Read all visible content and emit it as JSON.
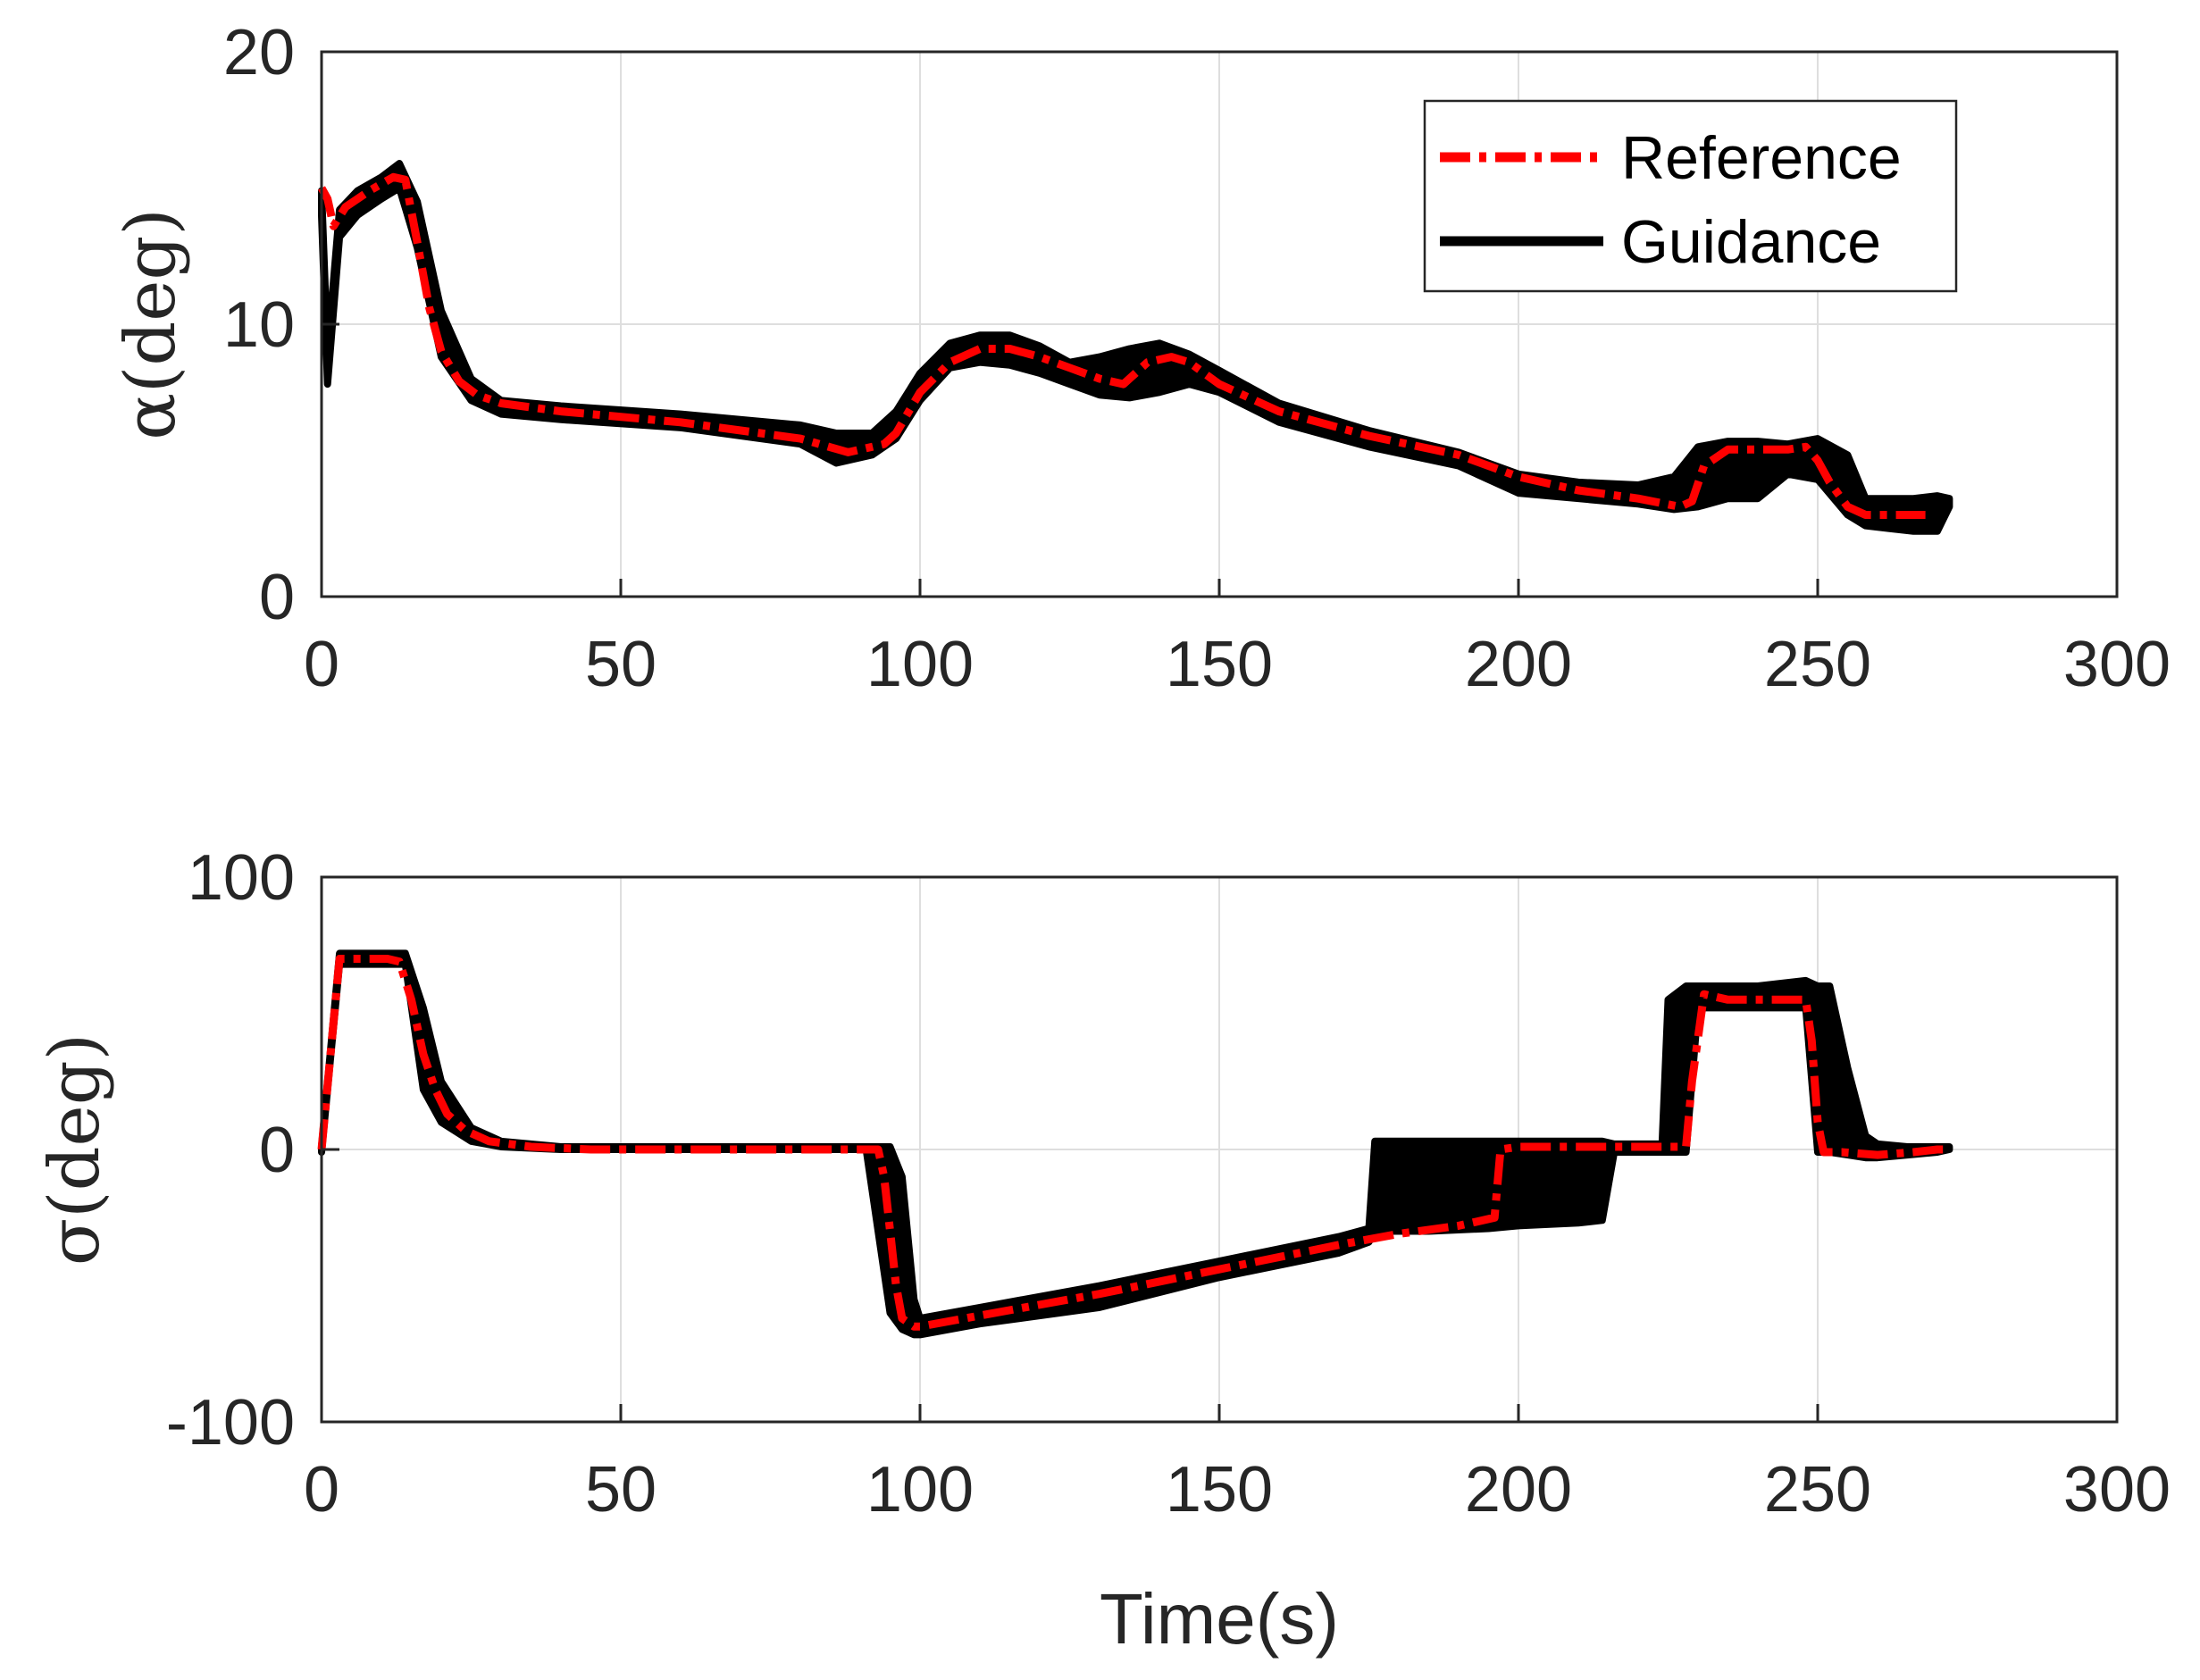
{
  "chart_data": [
    {
      "type": "line",
      "id": "alpha",
      "title": "",
      "xlabel": "",
      "ylabel": "α(deg)",
      "xlim": [
        0,
        300
      ],
      "ylim": [
        0,
        20
      ],
      "xticks": [
        0,
        50,
        100,
        150,
        200,
        250,
        300
      ],
      "yticks": [
        0,
        10,
        20
      ],
      "xtick_labels": [
        "0",
        "50",
        "100",
        "150",
        "200",
        "250",
        "300"
      ],
      "ytick_labels": [
        "0",
        "10",
        "20"
      ],
      "grid": true,
      "legend": {
        "position": "top-right",
        "entries": [
          {
            "label": "Reference",
            "style": "dash-dot",
            "color": "#ff0000"
          },
          {
            "label": "Guidance",
            "style": "solid",
            "color": "#000000"
          }
        ]
      },
      "series": [
        {
          "name": "Guidance",
          "color": "#000000",
          "band": {
            "x": [
              0,
              1,
              3,
              6,
              10,
              13,
              16,
              20,
              25,
              30,
              40,
              60,
              80,
              86,
              92,
              96,
              100,
              105,
              110,
              115,
              120,
              125,
              130,
              135,
              140,
              145,
              150,
              160,
              175,
              190,
              200,
              210,
              220,
              226,
              230,
              235,
              240,
              245,
              250,
              255,
              258,
              262,
              266,
              270,
              272
            ],
            "upper": [
              14.9,
              9.0,
              14.2,
              14.9,
              15.4,
              15.9,
              14.5,
              10.5,
              8.0,
              7.2,
              7.0,
              6.7,
              6.3,
              6.0,
              6.0,
              6.8,
              8.2,
              9.3,
              9.6,
              9.6,
              9.2,
              8.6,
              8.8,
              9.1,
              9.3,
              8.9,
              8.3,
              7.1,
              6.1,
              5.3,
              4.5,
              4.2,
              4.1,
              4.4,
              5.5,
              5.7,
              5.7,
              5.6,
              5.8,
              5.2,
              3.6,
              3.6,
              3.6,
              3.7,
              3.6
            ],
            "lower": [
              14.0,
              7.8,
              13.2,
              14.0,
              14.6,
              15.0,
              12.8,
              8.8,
              7.2,
              6.7,
              6.5,
              6.2,
              5.6,
              4.9,
              5.2,
              5.8,
              7.2,
              8.4,
              8.6,
              8.5,
              8.2,
              7.8,
              7.4,
              7.3,
              7.5,
              7.8,
              7.5,
              6.4,
              5.5,
              4.8,
              3.8,
              3.6,
              3.4,
              3.2,
              3.3,
              3.6,
              3.6,
              4.5,
              4.3,
              3.0,
              2.6,
              2.5,
              2.4,
              2.4,
              3.3
            ]
          }
        },
        {
          "name": "Reference",
          "color": "#ff0000",
          "x": [
            0,
            1,
            2,
            4,
            8,
            12,
            14,
            16,
            18,
            20,
            23,
            26,
            30,
            40,
            60,
            80,
            88,
            94,
            96,
            100,
            105,
            110,
            115,
            120,
            125,
            130,
            134,
            138,
            142,
            145,
            150,
            160,
            175,
            190,
            200,
            210,
            220,
            227,
            229,
            231,
            235,
            240,
            245,
            248,
            250,
            252,
            255,
            258,
            262,
            266,
            268
          ],
          "y": [
            15.0,
            14.6,
            13.6,
            14.3,
            14.9,
            15.4,
            15.3,
            13.0,
            10.6,
            9.0,
            7.9,
            7.4,
            7.1,
            6.8,
            6.4,
            5.8,
            5.3,
            5.6,
            6.0,
            7.5,
            8.6,
            9.1,
            9.1,
            8.8,
            8.4,
            8.0,
            7.8,
            8.6,
            8.8,
            8.6,
            7.8,
            6.8,
            5.9,
            5.2,
            4.4,
            3.9,
            3.6,
            3.3,
            3.5,
            4.8,
            5.4,
            5.4,
            5.4,
            5.5,
            5.0,
            4.2,
            3.3,
            3.0,
            3.0,
            3.0,
            3.0
          ]
        }
      ]
    },
    {
      "type": "line",
      "id": "sigma",
      "title": "",
      "xlabel": "Time(s)",
      "ylabel": "σ(deg)",
      "xlim": [
        0,
        300
      ],
      "ylim": [
        -100,
        100
      ],
      "xticks": [
        0,
        50,
        100,
        150,
        200,
        250,
        300
      ],
      "yticks": [
        -100,
        0,
        100
      ],
      "xtick_labels": [
        "0",
        "50",
        "100",
        "150",
        "200",
        "250",
        "300"
      ],
      "ytick_labels": [
        "-100",
        "0",
        "100"
      ],
      "grid": true,
      "series": [
        {
          "name": "Guidance",
          "color": "#000000",
          "band": {
            "x": [
              0,
              3,
              10,
              14,
              17,
              20,
              25,
              30,
              40,
              60,
              80,
              91,
              93,
              95,
              97,
              99,
              100,
              110,
              130,
              150,
              170,
              175,
              176,
              185,
              195,
              200,
              210,
              214,
              216,
              220,
              224,
              225,
              228,
              230,
              240,
              248,
              250,
              252,
              255,
              258,
              260,
              265,
              270,
              272
            ],
            "upper": [
              1,
              72,
              72,
              72,
              52,
              25,
              8,
              3,
              1,
              1,
              1,
              1,
              1,
              1,
              -10,
              -55,
              -62,
              -58,
              -50,
              -41,
              -32,
              -29,
              3,
              3,
              3,
              3,
              3,
              3,
              2,
              2,
              2,
              55,
              60,
              60,
              60,
              62,
              60,
              60,
              30,
              5,
              2,
              1,
              1,
              1
            ],
            "lower": [
              -1,
              68,
              68,
              68,
              22,
              10,
              3,
              1,
              0,
              0,
              0,
              0,
              -30,
              -60,
              -66,
              -68,
              -68,
              -64,
              -58,
              -47,
              -38,
              -34,
              -30,
              -30,
              -29,
              -28,
              -27,
              -26,
              -1,
              -1,
              -1,
              -1,
              -1,
              52,
              52,
              52,
              -1,
              -1,
              -2,
              -3,
              -3,
              -2,
              -1,
              0
            ]
          }
        },
        {
          "name": "Reference",
          "color": "#ff0000",
          "x": [
            0,
            3,
            11,
            13,
            15,
            17,
            19,
            21,
            24,
            28,
            35,
            45,
            60,
            93,
            94,
            96,
            97,
            99,
            100,
            110,
            130,
            150,
            170,
            180,
            190,
            196,
            197,
            200,
            215,
            228,
            229,
            231,
            235,
            245,
            248,
            249,
            250,
            251,
            254,
            260,
            266,
            270,
            272
          ],
          "y": [
            0,
            70,
            70,
            69,
            55,
            35,
            22,
            13,
            7,
            3,
            1,
            0,
            0,
            0,
            -10,
            -50,
            -62,
            -65,
            -65,
            -61,
            -53,
            -44,
            -35,
            -31,
            -28,
            -25,
            0,
            1,
            1,
            1,
            25,
            57,
            55,
            55,
            55,
            40,
            10,
            -1,
            -1,
            -2,
            -1,
            0,
            0
          ]
        }
      ]
    }
  ]
}
